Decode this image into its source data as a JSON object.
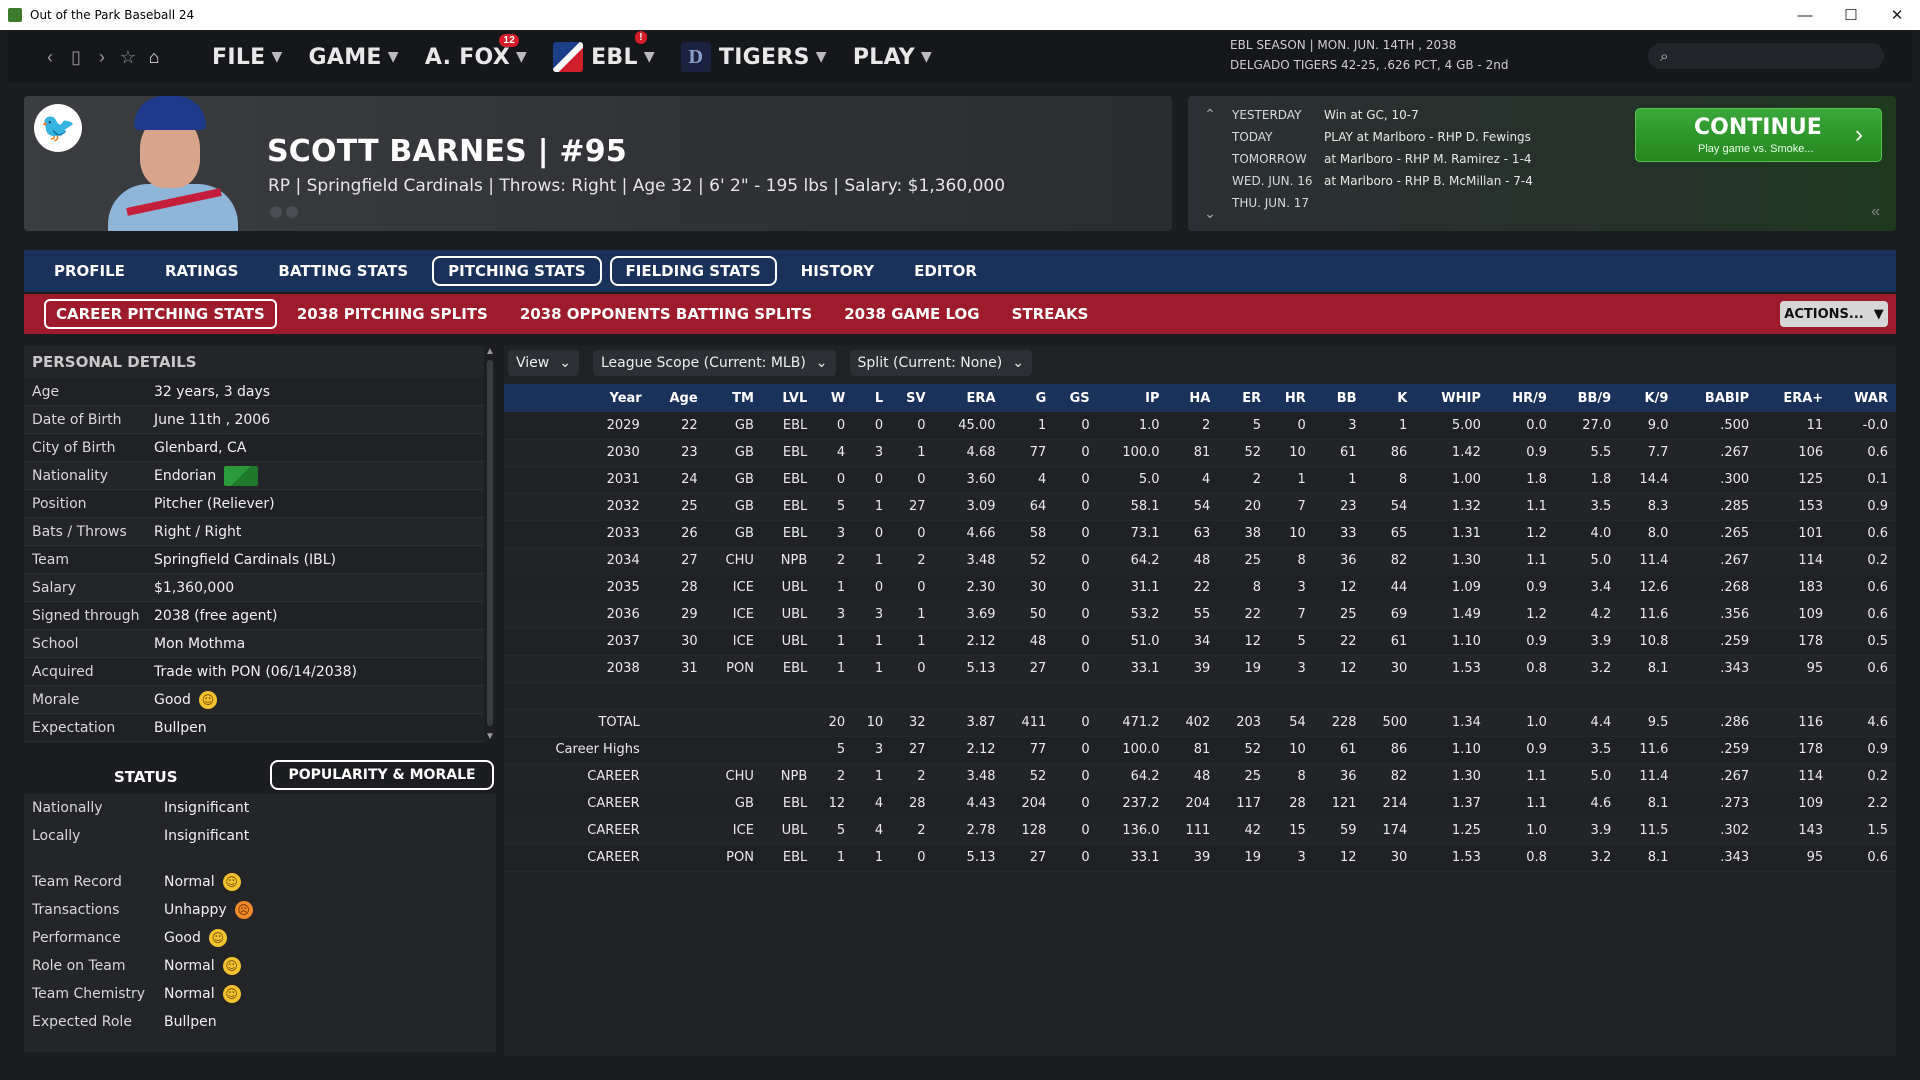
{
  "titlebar": {
    "title": "Out of the Park Baseball 24",
    "minimize": "—",
    "maximize": "☐",
    "close": "✕"
  },
  "nav": {
    "menu": [
      {
        "label": "FILE"
      },
      {
        "label": "GAME"
      },
      {
        "label": "A. FOX",
        "badge": "12"
      },
      {
        "label": "EBL",
        "badge": "!"
      },
      {
        "label": "TIGERS"
      },
      {
        "label": "PLAY"
      }
    ],
    "season_line1": "EBL SEASON  |  MON. JUN. 14TH , 2038",
    "season_line2": "DELGADO TIGERS  42-25, .626 PCT, 4 GB - 2nd",
    "search_placeholder": ""
  },
  "player": {
    "name": "SCOTT BARNES  |  #95",
    "meta": "RP | Springfield Cardinals  |  Throws: Right  |  Age 32  |  6' 2\" - 195 lbs  |  Salary: $1,360,000"
  },
  "schedule": {
    "rows": [
      {
        "day": "YESTERDAY",
        "game": "Win at GC, 10-7"
      },
      {
        "day": "TODAY",
        "game": "PLAY at Marlboro - RHP D. Fewings"
      },
      {
        "day": "TOMORROW",
        "game": "at Marlboro - RHP M. Ramirez - 1-4"
      },
      {
        "day": "WED. JUN. 16",
        "game": "at Marlboro - RHP B. McMillan - 7-4"
      },
      {
        "day": "THU. JUN. 17",
        "game": ""
      }
    ],
    "continue_label": "CONTINUE",
    "continue_sub": "Play game vs. Smoke..."
  },
  "tabs": [
    "PROFILE",
    "RATINGS",
    "BATTING STATS",
    "PITCHING STATS",
    "FIELDING STATS",
    "HISTORY",
    "EDITOR"
  ],
  "subtabs": [
    "CAREER PITCHING STATS",
    "2038 PITCHING SPLITS",
    "2038 OPPONENTS BATTING SPLITS",
    "2038 GAME LOG",
    "STREAKS"
  ],
  "actions_label": "ACTIONS...",
  "details": {
    "title": "PERSONAL DETAILS",
    "rows": [
      {
        "k": "Age",
        "v": "32 years, 3 days"
      },
      {
        "k": "Date of Birth",
        "v": "June 11th , 2006"
      },
      {
        "k": "City of Birth",
        "v": "Glenbard, CA"
      },
      {
        "k": "Nationality",
        "v": "Endorian"
      },
      {
        "k": "Position",
        "v": "Pitcher (Reliever)"
      },
      {
        "k": "Bats / Throws",
        "v": "Right / Right"
      },
      {
        "k": "Team",
        "v": "Springfield Cardinals (IBL)"
      },
      {
        "k": "Salary",
        "v": "$1,360,000"
      },
      {
        "k": "Signed through",
        "v": "2038 (free agent)"
      },
      {
        "k": "School",
        "v": "Mon Mothma"
      },
      {
        "k": "Acquired",
        "v": "Trade with PON (06/14/2038)"
      },
      {
        "k": "Morale",
        "v": "Good"
      },
      {
        "k": "Expectation",
        "v": "Bullpen"
      }
    ]
  },
  "status": {
    "title": "STATUS",
    "popularity_label": "POPULARITY & MORALE",
    "rows": [
      {
        "k": "Nationally",
        "v": "Insignificant"
      },
      {
        "k": "Locally",
        "v": "Insignificant"
      },
      {
        "k": "Team Record",
        "v": "Normal"
      },
      {
        "k": "Transactions",
        "v": "Unhappy"
      },
      {
        "k": "Performance",
        "v": "Good"
      },
      {
        "k": "Role on Team",
        "v": "Normal"
      },
      {
        "k": "Team Chemistry",
        "v": "Normal"
      },
      {
        "k": "Expected Role",
        "v": "Bullpen"
      }
    ]
  },
  "filters": [
    "View",
    "League Scope (Current: MLB)",
    "Split (Current: None)"
  ],
  "stats": {
    "columns": [
      "Year",
      "Age",
      "TM",
      "LVL",
      "W",
      "L",
      "SV",
      "ERA",
      "G",
      "GS",
      "IP",
      "HA",
      "ER",
      "HR",
      "BB",
      "K",
      "WHIP",
      "HR/9",
      "BB/9",
      "K/9",
      "BABIP",
      "ERA+",
      "WAR"
    ],
    "rows": [
      [
        "2029",
        "22",
        "GB",
        "EBL",
        "0",
        "0",
        "0",
        "45.00",
        "1",
        "0",
        "1.0",
        "2",
        "5",
        "0",
        "3",
        "1",
        "5.00",
        "0.0",
        "27.0",
        "9.0",
        ".500",
        "11",
        "-0.0"
      ],
      [
        "2030",
        "23",
        "GB",
        "EBL",
        "4",
        "3",
        "1",
        "4.68",
        "77",
        "0",
        "100.0",
        "81",
        "52",
        "10",
        "61",
        "86",
        "1.42",
        "0.9",
        "5.5",
        "7.7",
        ".267",
        "106",
        "0.6"
      ],
      [
        "2031",
        "24",
        "GB",
        "EBL",
        "0",
        "0",
        "0",
        "3.60",
        "4",
        "0",
        "5.0",
        "4",
        "2",
        "1",
        "1",
        "8",
        "1.00",
        "1.8",
        "1.8",
        "14.4",
        ".300",
        "125",
        "0.1"
      ],
      [
        "2032",
        "25",
        "GB",
        "EBL",
        "5",
        "1",
        "27",
        "3.09",
        "64",
        "0",
        "58.1",
        "54",
        "20",
        "7",
        "23",
        "54",
        "1.32",
        "1.1",
        "3.5",
        "8.3",
        ".285",
        "153",
        "0.9"
      ],
      [
        "2033",
        "26",
        "GB",
        "EBL",
        "3",
        "0",
        "0",
        "4.66",
        "58",
        "0",
        "73.1",
        "63",
        "38",
        "10",
        "33",
        "65",
        "1.31",
        "1.2",
        "4.0",
        "8.0",
        ".265",
        "101",
        "0.6"
      ],
      [
        "2034",
        "27",
        "CHU",
        "NPB",
        "2",
        "1",
        "2",
        "3.48",
        "52",
        "0",
        "64.2",
        "48",
        "25",
        "8",
        "36",
        "82",
        "1.30",
        "1.1",
        "5.0",
        "11.4",
        ".267",
        "114",
        "0.2"
      ],
      [
        "2035",
        "28",
        "ICE",
        "UBL",
        "1",
        "0",
        "0",
        "2.30",
        "30",
        "0",
        "31.1",
        "22",
        "8",
        "3",
        "12",
        "44",
        "1.09",
        "0.9",
        "3.4",
        "12.6",
        ".268",
        "183",
        "0.6"
      ],
      [
        "2036",
        "29",
        "ICE",
        "UBL",
        "3",
        "3",
        "1",
        "3.69",
        "50",
        "0",
        "53.2",
        "55",
        "22",
        "7",
        "25",
        "69",
        "1.49",
        "1.2",
        "4.2",
        "11.6",
        ".356",
        "109",
        "0.6"
      ],
      [
        "2037",
        "30",
        "ICE",
        "UBL",
        "1",
        "1",
        "1",
        "2.12",
        "48",
        "0",
        "51.0",
        "34",
        "12",
        "5",
        "22",
        "61",
        "1.10",
        "0.9",
        "3.9",
        "10.8",
        ".259",
        "178",
        "0.5"
      ],
      [
        "2038",
        "31",
        "PON",
        "EBL",
        "1",
        "1",
        "0",
        "5.13",
        "27",
        "0",
        "33.1",
        "39",
        "19",
        "3",
        "12",
        "30",
        "1.53",
        "0.8",
        "3.2",
        "8.1",
        ".343",
        "95",
        "0.6"
      ]
    ],
    "totals": [
      [
        "TOTAL",
        "",
        "",
        "",
        "20",
        "10",
        "32",
        "3.87",
        "411",
        "0",
        "471.2",
        "402",
        "203",
        "54",
        "228",
        "500",
        "1.34",
        "1.0",
        "4.4",
        "9.5",
        ".286",
        "116",
        "4.6"
      ],
      [
        "Career Highs",
        "",
        "",
        "",
        "5",
        "3",
        "27",
        "2.12",
        "77",
        "0",
        "100.0",
        "81",
        "52",
        "10",
        "61",
        "86",
        "1.10",
        "0.9",
        "3.5",
        "11.6",
        ".259",
        "178",
        "0.9"
      ],
      [
        "CAREER",
        "",
        "CHU",
        "NPB",
        "2",
        "1",
        "2",
        "3.48",
        "52",
        "0",
        "64.2",
        "48",
        "25",
        "8",
        "36",
        "82",
        "1.30",
        "1.1",
        "5.0",
        "11.4",
        ".267",
        "114",
        "0.2"
      ],
      [
        "CAREER",
        "",
        "GB",
        "EBL",
        "12",
        "4",
        "28",
        "4.43",
        "204",
        "0",
        "237.2",
        "204",
        "117",
        "28",
        "121",
        "214",
        "1.37",
        "1.1",
        "4.6",
        "8.1",
        ".273",
        "109",
        "2.2"
      ],
      [
        "CAREER",
        "",
        "ICE",
        "UBL",
        "5",
        "4",
        "2",
        "2.78",
        "128",
        "0",
        "136.0",
        "111",
        "42",
        "15",
        "59",
        "174",
        "1.25",
        "1.0",
        "3.9",
        "11.5",
        ".302",
        "143",
        "1.5"
      ],
      [
        "CAREER",
        "",
        "PON",
        "EBL",
        "1",
        "1",
        "0",
        "5.13",
        "27",
        "0",
        "33.1",
        "39",
        "19",
        "3",
        "12",
        "30",
        "1.53",
        "0.8",
        "3.2",
        "8.1",
        ".343",
        "95",
        "0.6"
      ]
    ]
  }
}
